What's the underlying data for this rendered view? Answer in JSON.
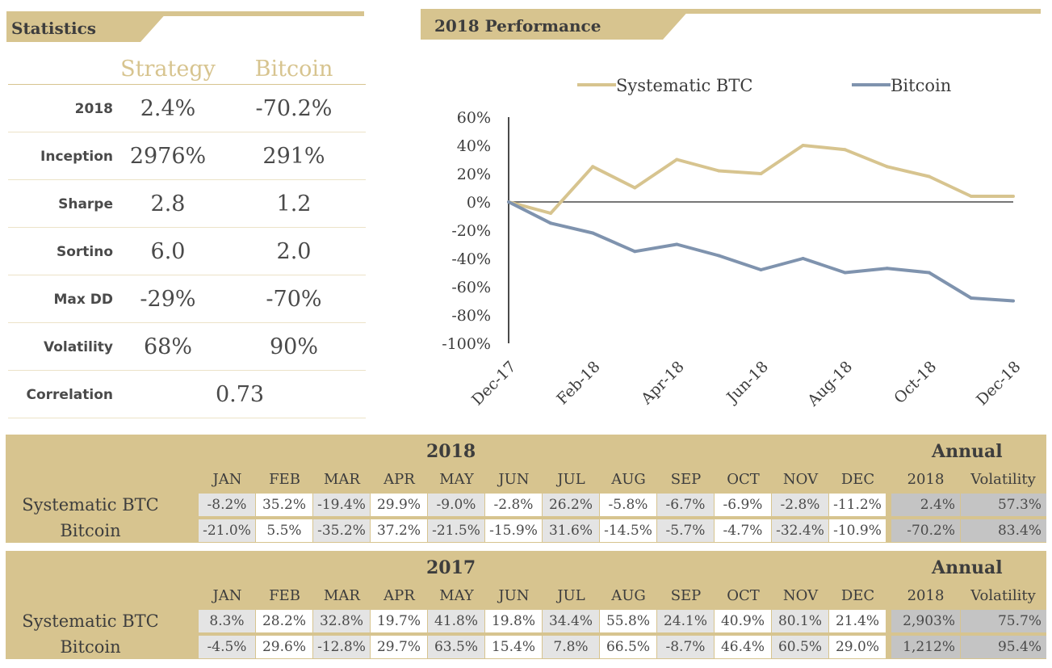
{
  "stats_section": {
    "title": "Statistics",
    "col_strategy": "Strategy",
    "col_bitcoin": "Bitcoin",
    "rows": [
      {
        "label": "2018",
        "strategy": "2.4%",
        "bitcoin": "-70.2%"
      },
      {
        "label": "Inception",
        "strategy": "2976%",
        "bitcoin": "291%"
      },
      {
        "label": "Sharpe",
        "strategy": "2.8",
        "bitcoin": "1.2"
      },
      {
        "label": "Sortino",
        "strategy": "6.0",
        "bitcoin": "2.0"
      },
      {
        "label": "Max DD",
        "strategy": "-29%",
        "bitcoin": "-70%"
      },
      {
        "label": "Volatility",
        "strategy": "68%",
        "bitcoin": "90%"
      }
    ],
    "correlation_label": "Correlation",
    "correlation_value": "0.73"
  },
  "performance_section": {
    "title": "2018 Performance"
  },
  "colors": {
    "gold": "#d7c48f",
    "blue": "#7f93ae",
    "gray_cell": "#e4e4e4",
    "gray_annual": "#c4c4c4",
    "white_cell": "#ffffff"
  },
  "chart_data": {
    "type": "line",
    "x": [
      "Dec-17",
      "Jan-18",
      "Feb-18",
      "Mar-18",
      "Apr-18",
      "May-18",
      "Jun-18",
      "Jul-18",
      "Aug-18",
      "Sep-18",
      "Oct-18",
      "Nov-18",
      "Dec-18"
    ],
    "xticks": [
      "Dec-17",
      "Feb-18",
      "Apr-18",
      "Jun-18",
      "Aug-18",
      "Oct-18",
      "Dec-18"
    ],
    "yticks": [
      "60%",
      "40%",
      "20%",
      "0%",
      "-20%",
      "-40%",
      "-60%",
      "-80%",
      "-100%"
    ],
    "ylim": [
      -100,
      60
    ],
    "legend_position": "top",
    "series": [
      {
        "name": "Systematic BTC",
        "color": "#d7c48f",
        "values": [
          0,
          -8,
          25,
          10,
          30,
          22,
          20,
          40,
          37,
          25,
          18,
          4,
          4
        ]
      },
      {
        "name": "Bitcoin",
        "color": "#7f93ae",
        "values": [
          0,
          -15,
          -22,
          -35,
          -30,
          -38,
          -48,
          -40,
          -50,
          -47,
          -50,
          -68,
          -70
        ]
      }
    ]
  },
  "tables": [
    {
      "year": "2018",
      "annual_label": "Annual",
      "months": [
        "JAN",
        "FEB",
        "MAR",
        "APR",
        "MAY",
        "JUN",
        "JUL",
        "AUG",
        "SEP",
        "OCT",
        "NOV",
        "DEC"
      ],
      "annual_headers": [
        "2018",
        "Volatility"
      ],
      "rows": [
        {
          "label": "Systematic BTC",
          "values": [
            "-8.2%",
            "35.2%",
            "-19.4%",
            "29.9%",
            "-9.0%",
            "-2.8%",
            "26.2%",
            "-5.8%",
            "-6.7%",
            "-6.9%",
            "-2.8%",
            "-11.2%"
          ],
          "annual": "2.4%",
          "vol": "57.3%"
        },
        {
          "label": "Bitcoin",
          "values": [
            "-21.0%",
            "5.5%",
            "-35.2%",
            "37.2%",
            "-21.5%",
            "-15.9%",
            "31.6%",
            "-14.5%",
            "-5.7%",
            "-4.7%",
            "-32.4%",
            "-10.9%"
          ],
          "annual": "-70.2%",
          "vol": "83.4%"
        }
      ]
    },
    {
      "year": "2017",
      "annual_label": "Annual",
      "months": [
        "JAN",
        "FEB",
        "MAR",
        "APR",
        "MAY",
        "JUN",
        "JUL",
        "AUG",
        "SEP",
        "OCT",
        "NOV",
        "DEC"
      ],
      "annual_headers": [
        "2018",
        "Volatility"
      ],
      "rows": [
        {
          "label": "Systematic BTC",
          "values": [
            "8.3%",
            "28.2%",
            "32.8%",
            "19.7%",
            "41.8%",
            "19.8%",
            "34.4%",
            "55.8%",
            "24.1%",
            "40.9%",
            "80.1%",
            "21.4%"
          ],
          "annual": "2,903%",
          "vol": "75.7%"
        },
        {
          "label": "Bitcoin",
          "values": [
            "-4.5%",
            "29.6%",
            "-12.8%",
            "29.7%",
            "63.5%",
            "15.4%",
            "7.8%",
            "66.5%",
            "-8.7%",
            "46.4%",
            "60.5%",
            "29.0%"
          ],
          "annual": "1,212%",
          "vol": "95.4%"
        }
      ]
    }
  ]
}
